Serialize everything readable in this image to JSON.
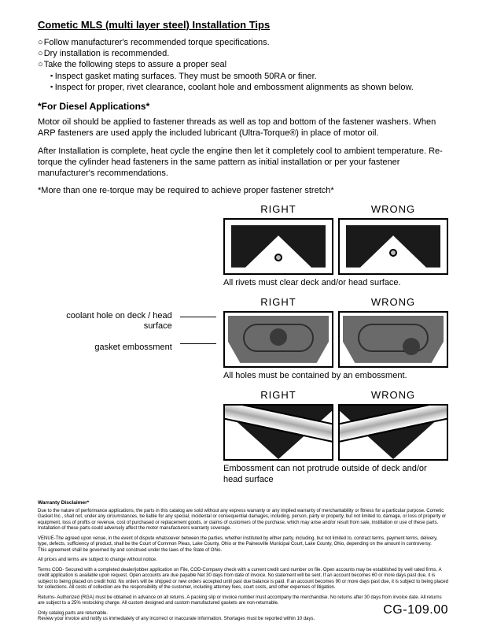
{
  "title": "Cometic MLS (multi layer steel) Installation Tips",
  "bullets": {
    "b1": "Follow manufacturer's recommended torque specifications.",
    "b2": "Dry installation is recommended.",
    "b3": "Take the following steps to assure a proper seal",
    "b3a": "Inspect gasket mating surfaces.  They must be smooth 50RA or finer.",
    "b3b": "Inspect for proper, rivet clearance, coolant hole and embossment alignments as shown below."
  },
  "diesel": {
    "heading": "*For Diesel Applications*",
    "p1": "Motor oil should be applied to fastener threads as well as top and bottom of the fastener washers. When ARP fasteners are used apply the included lubricant (Ultra-Torque®) in place of motor oil.",
    "p2": "After Installation is complete, heat cycle the engine then let it completely cool to ambient temperature. Re-torque the cylinder head fasteners in the same pattern as initial installation or per your fastener manufacturer's recommendations.",
    "p3": "*More than one re-torque may be required to achieve proper fastener stretch*"
  },
  "labels": {
    "right": "RIGHT",
    "wrong": "WRONG"
  },
  "captions": {
    "c1": "All rivets must clear deck and/or head surface.",
    "c2": "All holes must be contained by an embossment.",
    "c3": "Embossment can not protrude outside of deck and/or head surface"
  },
  "annotations": {
    "a1": "coolant hole on deck / head surface",
    "a2": "gasket embossment"
  },
  "disclaimer": {
    "heading": "Warranty Disclaimer*",
    "d1": "Due to the nature of performance applications, the parts in this catalog are sold without any express warranty or any implied warranty of merchantability or fitness for a particular purpose. Cometic Gasket Inc., shall not, under any circumstances, be liable for any special, incidental or consequential damages, including, person, party or property, but not limited to, damage, or loss of property or equipment, loss of profits or revenue, cost of purchased or replacement goods, or claims of customers of the purchase, which may arise and/or result from sale, instillation or use of these parts. Installation of these parts could adversely affect the motor manufacturers warranty coverage.",
    "d2": "VENUE-The agreed upon venue, in the event of dispute whatsoever between the parties, whether instituted by either party, including, but not limited to, contract terms, payment terms, delivery, type, defects, sufficiency of product, shall be the Court of Common Pleas, Lake County, Ohio or the Painesville Municipal Court, Lake County, Ohio, depending on the amount in controversy.",
    "d2b": "This agreement shall be governed by and construed under the laws of the State of Ohio.",
    "d3": "All prices and terms are subject to change without notice.",
    "d4": "Terms COD- Secured with a completed dealer/jobber application on File, COD-Company check with a current credit card number on file. Open accounts may be established by well rated firms. A credit application is available upon request. Open accounts are due payable Net 30 days from date of invoice. No statement will be sent. If an account becomes 60 or more days past due, it is subject to being placed on credit hold. No orders will be shipped or new orders accepted until past due balance is paid. If an account becomes 90 or more days past due, it is subject to being placed for collections. All costs of collection are the responsibility of the customer, including attorney fees, court costs, and other expenses of litigation.",
    "d5": "Returns- Authorized (RGA) must be obtained in advance on all returns. A packing slip or invoice number must accompany the merchandise. No returns after 30 days from invoice date. All returns are subject to a 25% restocking charge. All custom designed and custom manufactured gaskets are non-returnable.",
    "d6": "Only catalog parts are returnable.",
    "d6b": "Review your invoice and notify us immediately of any incorrect or inaccurate information. Shortages must be reported within 10 days."
  },
  "footer_code": "CG-109.00",
  "colors": {
    "dark": "#1a1a1a",
    "grey": "#6a6a6a",
    "hole": "#3a3a3a",
    "rivet": "#bbbbbb"
  }
}
